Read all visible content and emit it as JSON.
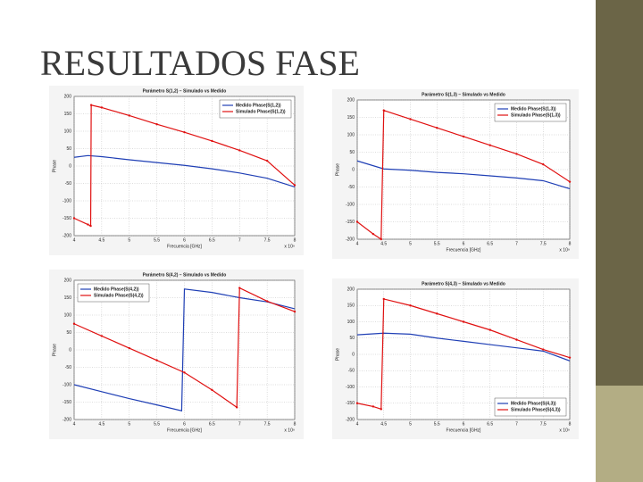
{
  "slide_title": "RESULTADOS FASE",
  "chart_data": [
    {
      "type": "line",
      "title": "Parámetro S(1,2) – Simulado vs Medido",
      "xlabel": "Frecuencia [GHz]",
      "ylabel": "Phase",
      "x_multiplier": "x 10⁹",
      "xlim": [
        4,
        8
      ],
      "xticks": [
        4,
        4.5,
        5,
        5.5,
        6,
        6.5,
        7,
        7.5,
        8
      ],
      "ylim": [
        -200,
        200
      ],
      "yticks": [
        -200,
        -150,
        -100,
        -50,
        0,
        50,
        100,
        150,
        200
      ],
      "grid": true,
      "legend": "upper right",
      "series": [
        {
          "name": "Medido Phase(S(1,2))",
          "color": "#1f3fb5",
          "x": [
            4,
            4.25,
            4.5,
            5,
            5.5,
            6,
            6.5,
            7,
            7.5,
            8
          ],
          "values": [
            25,
            30,
            27,
            18,
            10,
            2,
            -8,
            -20,
            -35,
            -60
          ]
        },
        {
          "name": "Simulado Phase(S(1,2))",
          "color": "#e01010",
          "marker": true,
          "x": [
            4,
            4.25,
            4.3,
            4.31,
            4.5,
            5,
            5.5,
            6,
            6.5,
            7,
            7.5,
            8
          ],
          "values": [
            -150,
            -168,
            -172,
            175,
            168,
            145,
            120,
            97,
            72,
            45,
            15,
            -55
          ]
        }
      ]
    },
    {
      "type": "line",
      "title": "Parámetro S(1,3) – Simulado vs Medido",
      "xlabel": "Frecuencia [GHz]",
      "ylabel": "Phase",
      "x_multiplier": "x 10⁹",
      "xlim": [
        4,
        8
      ],
      "xticks": [
        4,
        4.5,
        5,
        5.5,
        6,
        6.5,
        7,
        7.5,
        8
      ],
      "ylim": [
        -200,
        200
      ],
      "yticks": [
        -200,
        -150,
        -100,
        -50,
        0,
        50,
        100,
        150,
        200
      ],
      "grid": true,
      "legend": "upper right",
      "series": [
        {
          "name": "Medido Phase(S(1,3))",
          "color": "#1f3fb5",
          "x": [
            4,
            4.5,
            5,
            5.5,
            6,
            6.5,
            7,
            7.5,
            8
          ],
          "values": [
            25,
            2,
            -2,
            -8,
            -12,
            -18,
            -24,
            -32,
            -55
          ]
        },
        {
          "name": "Simulado Phase(S(1,3))",
          "color": "#e01010",
          "marker": true,
          "x": [
            4,
            4.3,
            4.45,
            4.5,
            5,
            5.5,
            6,
            6.5,
            7,
            7.5,
            8
          ],
          "values": [
            -150,
            -185,
            -200,
            170,
            145,
            120,
            95,
            70,
            45,
            15,
            -35
          ]
        }
      ]
    },
    {
      "type": "line",
      "title": "Parámetro S(4,2) – Simulado vs Medido",
      "xlabel": "Frecuencia [GHz]",
      "ylabel": "Phase",
      "x_multiplier": "x 10⁹",
      "xlim": [
        4,
        8
      ],
      "xticks": [
        4,
        4.5,
        5,
        5.5,
        6,
        6.5,
        7,
        7.5,
        8
      ],
      "ylim": [
        -200,
        200
      ],
      "yticks": [
        -200,
        -150,
        -100,
        -50,
        0,
        50,
        100,
        150,
        200
      ],
      "grid": true,
      "legend": "upper left",
      "series": [
        {
          "name": "Medido Phase(S(4,2))",
          "color": "#1f3fb5",
          "x": [
            4,
            4.5,
            5,
            5.5,
            5.95,
            6,
            6.5,
            7,
            7.5,
            8
          ],
          "values": [
            -100,
            -120,
            -140,
            -158,
            -175,
            175,
            165,
            150,
            138,
            118
          ]
        },
        {
          "name": "Simulado Phase(S(4,2))",
          "color": "#e01010",
          "marker": true,
          "x": [
            4,
            4.5,
            5,
            5.5,
            6,
            6.5,
            6.95,
            7,
            7.5,
            8
          ],
          "values": [
            75,
            40,
            5,
            -30,
            -65,
            -115,
            -165,
            178,
            140,
            110
          ]
        }
      ]
    },
    {
      "type": "line",
      "title": "Parámetro S(4,3) – Simulado vs Medido",
      "xlabel": "Frecuencia [GHz]",
      "ylabel": "Phase",
      "x_multiplier": "x 10⁹",
      "xlim": [
        4,
        8
      ],
      "xticks": [
        4,
        4.5,
        5,
        5.5,
        6,
        6.5,
        7,
        7.5,
        8
      ],
      "ylim": [
        -200,
        200
      ],
      "yticks": [
        -200,
        -150,
        -100,
        -50,
        0,
        50,
        100,
        150,
        200
      ],
      "grid": true,
      "legend": "lower right",
      "series": [
        {
          "name": "Medido Phase(S(4,3))",
          "color": "#1f3fb5",
          "x": [
            4,
            4.5,
            5,
            5.5,
            6,
            6.5,
            7,
            7.5,
            8
          ],
          "values": [
            60,
            65,
            62,
            50,
            40,
            30,
            20,
            10,
            -20
          ]
        },
        {
          "name": "Simulado Phase(S(4,3))",
          "color": "#e01010",
          "marker": true,
          "x": [
            4,
            4.3,
            4.45,
            4.5,
            5,
            5.5,
            6,
            6.5,
            7,
            7.5,
            8
          ],
          "values": [
            -150,
            -160,
            -168,
            170,
            150,
            125,
            100,
            75,
            45,
            15,
            -10
          ]
        }
      ]
    }
  ]
}
